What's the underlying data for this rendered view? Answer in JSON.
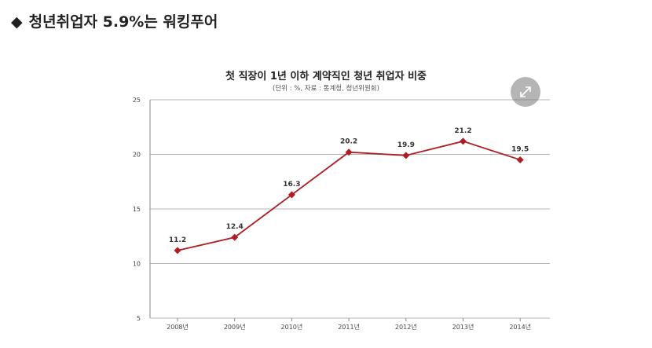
{
  "headline": {
    "bullet": "◆",
    "text": "청년취업자 5.9%는 워킹푸어"
  },
  "expand_button": {
    "icon": "expand-arrows-icon"
  },
  "colors": {
    "series": "#b01e23",
    "grid": "#b4b4b4",
    "axis": "#888888"
  },
  "chart_data": {
    "type": "line",
    "title": "첫 직장이 1년 이하 계약직인 청년 취업자 비중",
    "subtitle": "(단위 : %, 자료 : 통계청, 청년위원회)",
    "xlabel": "",
    "ylabel": "",
    "categories": [
      "2008년",
      "2009년",
      "2010년",
      "2011년",
      "2012년",
      "2013년",
      "2014년"
    ],
    "values": [
      11.2,
      12.4,
      16.3,
      20.2,
      19.9,
      21.2,
      19.5
    ],
    "value_labels": [
      "11.2",
      "12.4",
      "16.3",
      "20.2",
      "19.9",
      "21.2",
      "19.5"
    ],
    "ylim": [
      5,
      25
    ],
    "yticks": [
      5,
      10,
      15,
      20,
      25
    ],
    "ytick_labels": [
      "5",
      "10",
      "15",
      "20",
      "25"
    ],
    "grid": true,
    "marker": "diamond",
    "legend": "none"
  }
}
